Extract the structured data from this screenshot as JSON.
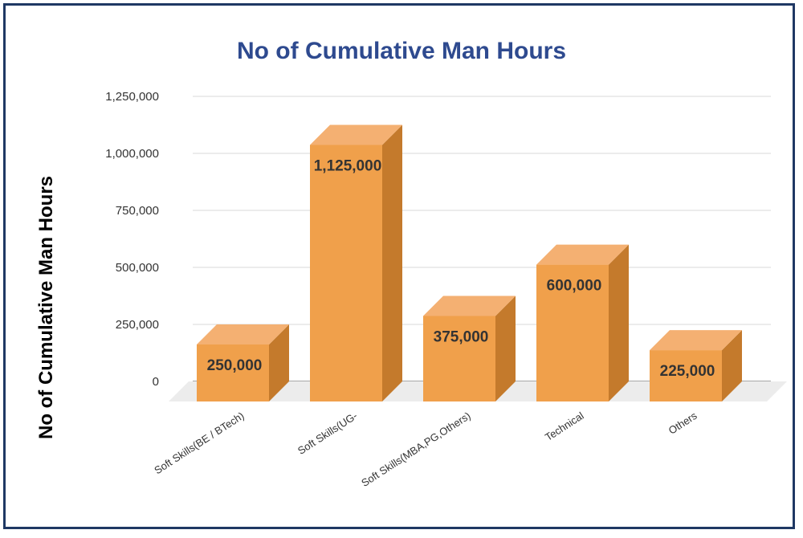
{
  "chart_data": {
    "type": "bar",
    "title": "No of Cumulative Man Hours",
    "ylabel": "No of Cumulative Man Hours",
    "xlabel": "",
    "categories": [
      "Soft Skills(BE / BTech)",
      "Soft Skills(UG-",
      "Soft Skills(MBA,PG,Others)",
      "Technical",
      "Others"
    ],
    "values": [
      250000,
      1125000,
      375000,
      600000,
      225000
    ],
    "data_labels": [
      "250,000",
      "1,125,000",
      "375,000",
      "600,000",
      "225,000"
    ],
    "y_ticks": [
      "0",
      "250,000",
      "500,000",
      "750,000",
      "1,000,000",
      "1,250,000"
    ],
    "ylim": [
      0,
      1250000
    ],
    "grid": true,
    "legend": "none",
    "style": "3d-column",
    "colors": {
      "bar_front": "#f0a04b",
      "bar_top": "#f4b072",
      "bar_side": "#c47a2c",
      "title": "#2e4a8f",
      "frame": "#1f3864",
      "floor": "#ececec",
      "gridline": "#d9d9d9"
    }
  }
}
